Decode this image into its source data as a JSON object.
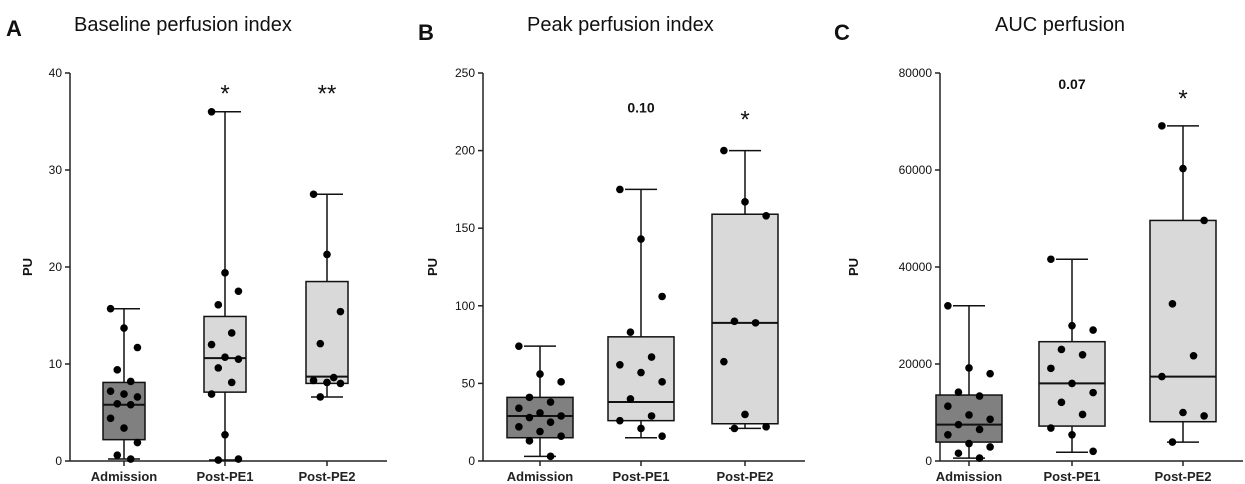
{
  "chart_data": [
    {
      "type": "box",
      "panel_label": "A",
      "title": "Baseline perfusion index",
      "ylabel": "PU",
      "ylim": [
        0,
        40
      ],
      "yticks": [
        0,
        10,
        20,
        30,
        40
      ],
      "categories": [
        "Admission",
        "Post-PE1",
        "Post-PE2"
      ],
      "box_colors": [
        "#808080",
        "#d9d9d9",
        "#d9d9d9"
      ],
      "boxes": [
        {
          "min": 0.2,
          "q1": 2.2,
          "median": 5.8,
          "q3": 8.1,
          "max": 15.7
        },
        {
          "min": 0.1,
          "q1": 7.1,
          "median": 10.6,
          "q3": 14.9,
          "max": 36.0
        },
        {
          "min": 6.6,
          "q1": 8.0,
          "median": 8.7,
          "q3": 18.5,
          "max": 27.5
        }
      ],
      "points": [
        [
          15.7,
          13.7,
          11.7,
          9.4,
          8.2,
          7.2,
          6.9,
          6.6,
          5.9,
          5.8,
          4.4,
          3.4,
          1.9,
          0.6,
          0.2
        ],
        [
          36.0,
          19.4,
          17.5,
          16.1,
          13.2,
          12.0,
          10.7,
          10.5,
          9.6,
          8.1,
          6.9,
          2.7,
          0.2,
          0.1
        ],
        [
          27.5,
          21.3,
          15.4,
          12.1,
          8.6,
          8.3,
          8.1,
          8.0,
          6.6
        ]
      ],
      "annotations": [
        {
          "category": "Post-PE1",
          "text": "*",
          "bold": false,
          "y": 38.5
        },
        {
          "category": "Post-PE2",
          "text": "**",
          "bold": false,
          "y": 38.5
        }
      ]
    },
    {
      "type": "box",
      "panel_label": "B",
      "title": "Peak perfusion index",
      "ylabel": "PU",
      "ylim": [
        0,
        250
      ],
      "yticks": [
        0,
        50,
        100,
        150,
        200,
        250
      ],
      "categories": [
        "Admission",
        "Post-PE1",
        "Post-PE2"
      ],
      "box_colors": [
        "#808080",
        "#d9d9d9",
        "#d9d9d9"
      ],
      "boxes": [
        {
          "min": 3,
          "q1": 15,
          "median": 29,
          "q3": 41,
          "max": 74
        },
        {
          "min": 15,
          "q1": 26,
          "median": 38,
          "q3": 80,
          "max": 175
        },
        {
          "min": 21,
          "q1": 24,
          "median": 89,
          "q3": 159,
          "max": 200
        }
      ],
      "points": [
        [
          74,
          56,
          51,
          41,
          38,
          34,
          31,
          29,
          28,
          25,
          22,
          19,
          16,
          13,
          3
        ],
        [
          175,
          143,
          106,
          83,
          67,
          62,
          57,
          51,
          40,
          29,
          26,
          21,
          16
        ],
        [
          200,
          167,
          158,
          90,
          89,
          64,
          30,
          22,
          21
        ]
      ],
      "annotations": [
        {
          "category": "Post-PE1",
          "text": "0.10",
          "bold": true,
          "y": 227
        },
        {
          "category": "Post-PE2",
          "text": "*",
          "bold": false,
          "y": 224
        }
      ]
    },
    {
      "type": "box",
      "panel_label": "C",
      "title": "AUC perfusion",
      "ylabel": "PU",
      "ylim": [
        0,
        80000
      ],
      "yticks": [
        0,
        20000,
        40000,
        60000,
        80000
      ],
      "categories": [
        "Admission",
        "Post-PE1",
        "Post-PE2"
      ],
      "box_colors": [
        "#808080",
        "#d9d9d9",
        "#d9d9d9"
      ],
      "boxes": [
        {
          "min": 600,
          "q1": 3900,
          "median": 7500,
          "q3": 13600,
          "max": 32000
        },
        {
          "min": 1800,
          "q1": 7200,
          "median": 16000,
          "q3": 24600,
          "max": 41600
        },
        {
          "min": 3900,
          "q1": 8100,
          "median": 17400,
          "q3": 49600,
          "max": 69100
        }
      ],
      "points": [
        [
          32000,
          19200,
          18000,
          14200,
          13400,
          11300,
          9500,
          8600,
          7500,
          6500,
          5400,
          3600,
          2900,
          1600,
          600
        ],
        [
          41600,
          27900,
          27000,
          23000,
          21900,
          19100,
          16000,
          14100,
          12100,
          9600,
          6800,
          5400,
          2000
        ],
        [
          69100,
          60300,
          49600,
          32400,
          21700,
          17400,
          10000,
          9300,
          3900
        ]
      ],
      "annotations": [
        {
          "category": "Post-PE1",
          "text": "0.07",
          "bold": true,
          "y": 77500
        },
        {
          "category": "Post-PE2",
          "text": "*",
          "bold": false,
          "y": 76000
        }
      ]
    }
  ]
}
